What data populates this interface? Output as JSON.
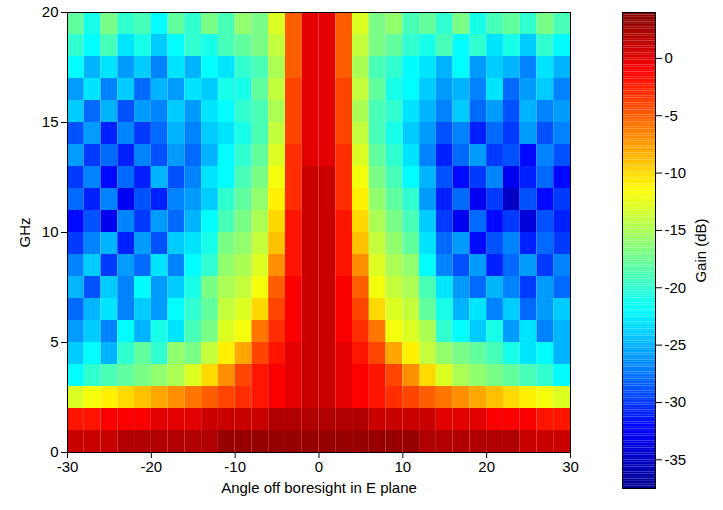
{
  "chart_data": {
    "type": "heatmap",
    "xlabel": "Angle off boresight in E plane",
    "ylabel": "GHz",
    "xlim": [
      -30,
      30
    ],
    "xticks": [
      -30,
      -20,
      -10,
      0,
      10,
      20,
      30
    ],
    "ylim": [
      0,
      20
    ],
    "yticks": [
      0,
      5,
      10,
      15,
      20
    ],
    "grid": false,
    "x": [
      -29,
      -27,
      -25,
      -23,
      -21,
      -19,
      -17,
      -15,
      -13,
      -11,
      -9,
      -7,
      -5,
      -3,
      -1,
      1,
      3,
      5,
      7,
      9,
      11,
      13,
      15,
      17,
      19,
      21,
      23,
      25,
      27,
      29
    ],
    "y": [
      0.5,
      1.5,
      2.5,
      3.5,
      4.5,
      5.5,
      6.5,
      7.5,
      8.5,
      9.5,
      10.5,
      11.5,
      12.5,
      13.5,
      14.5,
      15.5,
      16.5,
      17.5,
      18.5,
      19.5
    ],
    "cells": [
      [
        1,
        1,
        1,
        2,
        2,
        2,
        2,
        2,
        2,
        3,
        3,
        3,
        3,
        3,
        3,
        3,
        3,
        3,
        3,
        3,
        3,
        2,
        2,
        2,
        2,
        2,
        2,
        1,
        1,
        1
      ],
      [
        -2,
        -2,
        -1,
        -1,
        -1,
        0,
        0,
        0,
        1,
        1,
        1,
        1,
        2,
        2,
        2,
        2,
        2,
        2,
        1,
        1,
        1,
        1,
        0,
        0,
        0,
        -1,
        -1,
        -1,
        -2,
        -2
      ],
      [
        -13,
        -12,
        -11,
        -10,
        -9,
        -8,
        -7,
        -6,
        -5,
        -4,
        -3,
        -2,
        -1,
        0,
        1,
        1,
        0,
        -1,
        -2,
        -3,
        -4,
        -5,
        -6,
        -7,
        -8,
        -9,
        -10,
        -11,
        -12,
        -13
      ],
      [
        -22,
        -20,
        -19,
        -18,
        -17,
        -16,
        -15,
        -13,
        -10,
        -7,
        -4,
        -2,
        -1,
        0,
        1,
        1,
        0,
        -1,
        -2,
        -4,
        -7,
        -10,
        -13,
        -15,
        -16,
        -17,
        -18,
        -19,
        -20,
        -22
      ],
      [
        -24,
        -22,
        -25,
        -20,
        -18,
        -20,
        -16,
        -17,
        -14,
        -11,
        -8,
        -4,
        -2,
        0,
        1,
        1,
        0,
        -2,
        -4,
        -8,
        -11,
        -14,
        -16,
        -17,
        -18,
        -19,
        -21,
        -23,
        -22,
        -25
      ],
      [
        -26,
        -24,
        -27,
        -22,
        -25,
        -21,
        -23,
        -19,
        -17,
        -13,
        -12,
        -6,
        -3,
        -1,
        1,
        1,
        -1,
        -3,
        -6,
        -12,
        -13,
        -15,
        -20,
        -22,
        -24,
        -21,
        -26,
        -23,
        -27,
        -25
      ],
      [
        -28,
        -25,
        -23,
        -27,
        -24,
        -26,
        -22,
        -20,
        -18,
        -14,
        -13,
        -10,
        -4,
        -1,
        1,
        1,
        -1,
        -4,
        -10,
        -13,
        -14,
        -18,
        -21,
        -25,
        -23,
        -27,
        -24,
        -28,
        -26,
        -24
      ],
      [
        -25,
        -29,
        -24,
        -27,
        -22,
        -26,
        -24,
        -21,
        -17,
        -15,
        -14,
        -12,
        -5,
        -1,
        1,
        1,
        -1,
        -5,
        -12,
        -14,
        -15,
        -19,
        -23,
        -26,
        -28,
        -25,
        -27,
        -30,
        -26,
        -28
      ],
      [
        -27,
        -24,
        -30,
        -26,
        -28,
        -23,
        -27,
        -22,
        -20,
        -16,
        -15,
        -13,
        -7,
        -2,
        1,
        1,
        -2,
        -7,
        -13,
        -15,
        -16,
        -22,
        -27,
        -29,
        -26,
        -31,
        -28,
        -26,
        -30,
        -27
      ],
      [
        -30,
        -27,
        -25,
        -31,
        -26,
        -29,
        -24,
        -23,
        -21,
        -17,
        -16,
        -14,
        -9,
        -2,
        1,
        1,
        -2,
        -9,
        -14,
        -16,
        -18,
        -23,
        -28,
        -26,
        -32,
        -29,
        -27,
        -31,
        -28,
        -30
      ],
      [
        -32,
        -29,
        -33,
        -27,
        -30,
        -26,
        -28,
        -25,
        -22,
        -19,
        -17,
        -15,
        -10,
        -2,
        1,
        1,
        -2,
        -10,
        -15,
        -17,
        -19,
        -24,
        -30,
        -33,
        -28,
        -32,
        -30,
        -34,
        -29,
        -31
      ],
      [
        -28,
        -31,
        -27,
        -33,
        -29,
        -31,
        -27,
        -26,
        -24,
        -20,
        -18,
        -16,
        -11,
        -3,
        1,
        1,
        -3,
        -11,
        -16,
        -18,
        -20,
        -26,
        -31,
        -28,
        -33,
        -30,
        -35,
        -29,
        -32,
        -30
      ],
      [
        -30,
        -27,
        -32,
        -28,
        -31,
        -25,
        -29,
        -27,
        -23,
        -22,
        -19,
        -17,
        -12,
        -3,
        1,
        1,
        -3,
        -12,
        -17,
        -19,
        -22,
        -25,
        -29,
        -32,
        -30,
        -27,
        -33,
        -31,
        -28,
        -32
      ],
      [
        -26,
        -30,
        -28,
        -31,
        -27,
        -29,
        -26,
        -28,
        -25,
        -22,
        -20,
        -18,
        -13,
        -3,
        0,
        0,
        -3,
        -13,
        -18,
        -20,
        -23,
        -27,
        -31,
        -28,
        -26,
        -30,
        -29,
        -32,
        -27,
        -29
      ],
      [
        -29,
        -26,
        -31,
        -27,
        -30,
        -28,
        -25,
        -27,
        -24,
        -23,
        -21,
        -19,
        -14,
        -4,
        0,
        0,
        -4,
        -14,
        -19,
        -21,
        -24,
        -26,
        -29,
        -27,
        -31,
        -28,
        -30,
        -26,
        -29,
        -27
      ],
      [
        -24,
        -28,
        -25,
        -29,
        -26,
        -27,
        -24,
        -26,
        -23,
        -22,
        -20,
        -19,
        -15,
        -4,
        0,
        0,
        -4,
        -15,
        -19,
        -20,
        -23,
        -25,
        -27,
        -24,
        -28,
        -26,
        -29,
        -25,
        -27,
        -26
      ],
      [
        -26,
        -23,
        -27,
        -24,
        -28,
        -25,
        -26,
        -23,
        -24,
        -21,
        -21,
        -18,
        -14,
        -4,
        0,
        0,
        -4,
        -14,
        -18,
        -21,
        -22,
        -24,
        -26,
        -25,
        -27,
        -23,
        -28,
        -26,
        -24,
        -27
      ],
      [
        -22,
        -25,
        -23,
        -26,
        -24,
        -27,
        -23,
        -25,
        -22,
        -23,
        -20,
        -19,
        -15,
        -5,
        0,
        0,
        -5,
        -15,
        -19,
        -20,
        -22,
        -23,
        -25,
        -22,
        -26,
        -24,
        -25,
        -27,
        -23,
        -25
      ],
      [
        -20,
        -22,
        -19,
        -23,
        -21,
        -24,
        -22,
        -20,
        -21,
        -19,
        -18,
        -17,
        -14,
        -5,
        0,
        0,
        -5,
        -14,
        -17,
        -18,
        -20,
        -21,
        -19,
        -22,
        -20,
        -23,
        -21,
        -24,
        -20,
        -22
      ],
      [
        -18,
        -21,
        -17,
        -20,
        -19,
        -22,
        -18,
        -20,
        -17,
        -19,
        -16,
        -17,
        -13,
        -5,
        0,
        0,
        -5,
        -13,
        -17,
        -16,
        -19,
        -18,
        -20,
        -17,
        -21,
        -19,
        -18,
        -20,
        -17,
        -19
      ]
    ],
    "colorbar": {
      "label": "Gain (dB)",
      "lim": [
        -37.5,
        4
      ],
      "ticks": [
        0,
        -5,
        -10,
        -15,
        -20,
        -25,
        -30,
        -35
      ]
    }
  }
}
